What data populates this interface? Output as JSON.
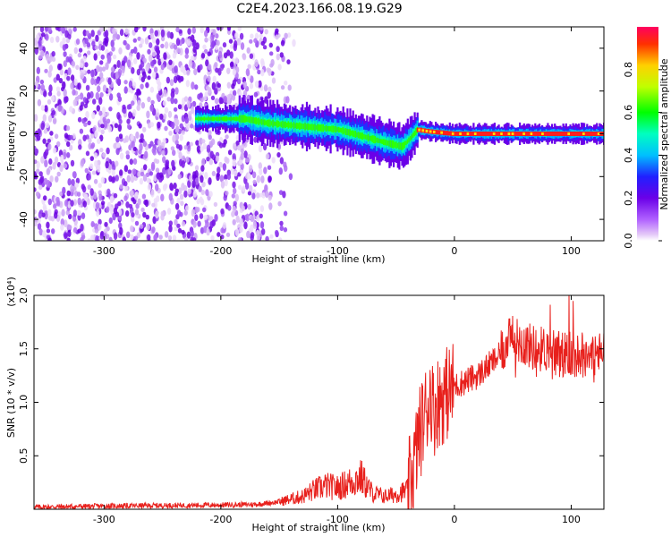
{
  "title": "C2E4.2023.166.08.19.G29",
  "chart_data": [
    {
      "type": "heatmap",
      "xlabel": "Height of straight line (km)",
      "ylabel": "Frequency (Hz)",
      "xlim": [
        -360,
        128
      ],
      "ylim": [
        -50,
        50
      ],
      "x_ticks": [
        -300,
        -200,
        -100,
        0,
        100
      ],
      "y_ticks": [
        -40,
        -20,
        0,
        20,
        40
      ],
      "colorbar": {
        "label": "Normalized spectral amplitude",
        "range": [
          0,
          1
        ],
        "ticks": [
          0.0,
          0.2,
          0.4,
          0.6,
          0.8
        ],
        "colors": [
          "#ffffff",
          "#e4c8f8",
          "#b060ff",
          "#6a00e8",
          "#2020ff",
          "#00c0ff",
          "#00ffc0",
          "#00ff00",
          "#c0ff00",
          "#ffd000",
          "#ff3000",
          "#ff0060"
        ]
      },
      "ridge_frequency": {
        "x": [
          -215,
          -180,
          -160,
          -140,
          -120,
          -100,
          -80,
          -60,
          -45,
          -38,
          -32,
          -20,
          0,
          40,
          80,
          128
        ],
        "y": [
          7,
          7,
          5,
          4,
          3,
          2,
          -1,
          -4,
          -6,
          -2,
          2,
          1,
          0,
          0,
          0,
          0
        ]
      },
      "noise_region_x": [
        -360,
        -165
      ]
    },
    {
      "type": "line",
      "xlabel": "Height of straight line (km)",
      "ylabel": "SNR (10 * v/v)",
      "y_scale_label": "(x10⁴)",
      "xlim": [
        -360,
        128
      ],
      "ylim": [
        0,
        20000
      ],
      "x_ticks": [
        -300,
        -200,
        -100,
        0,
        100
      ],
      "y_ticks": [
        5000,
        10000,
        15000,
        20000
      ],
      "y_tick_labels": [
        "0.5",
        "1.0",
        "1.5",
        "2.0"
      ],
      "series": [
        {
          "color": "#e8201c",
          "x": [
            -360,
            -300,
            -250,
            -200,
            -170,
            -150,
            -130,
            -120,
            -110,
            -100,
            -90,
            -80,
            -75,
            -70,
            -60,
            -50,
            -40,
            -35,
            -30,
            -25,
            -20,
            -18,
            -15,
            -10,
            -5,
            0,
            10,
            20,
            30,
            40,
            45,
            50,
            60,
            70,
            80,
            90,
            100,
            110,
            120,
            128
          ],
          "y": [
            200,
            300,
            350,
            400,
            450,
            700,
            1200,
            1800,
            2200,
            2000,
            2500,
            3000,
            2200,
            1500,
            1200,
            1400,
            1800,
            4000,
            7000,
            9000,
            11000,
            9000,
            10000,
            10500,
            11000,
            11500,
            12000,
            12500,
            13500,
            14500,
            15500,
            16000,
            15500,
            15000,
            15000,
            14500,
            14500,
            14500,
            14500,
            14500
          ]
        }
      ]
    }
  ]
}
